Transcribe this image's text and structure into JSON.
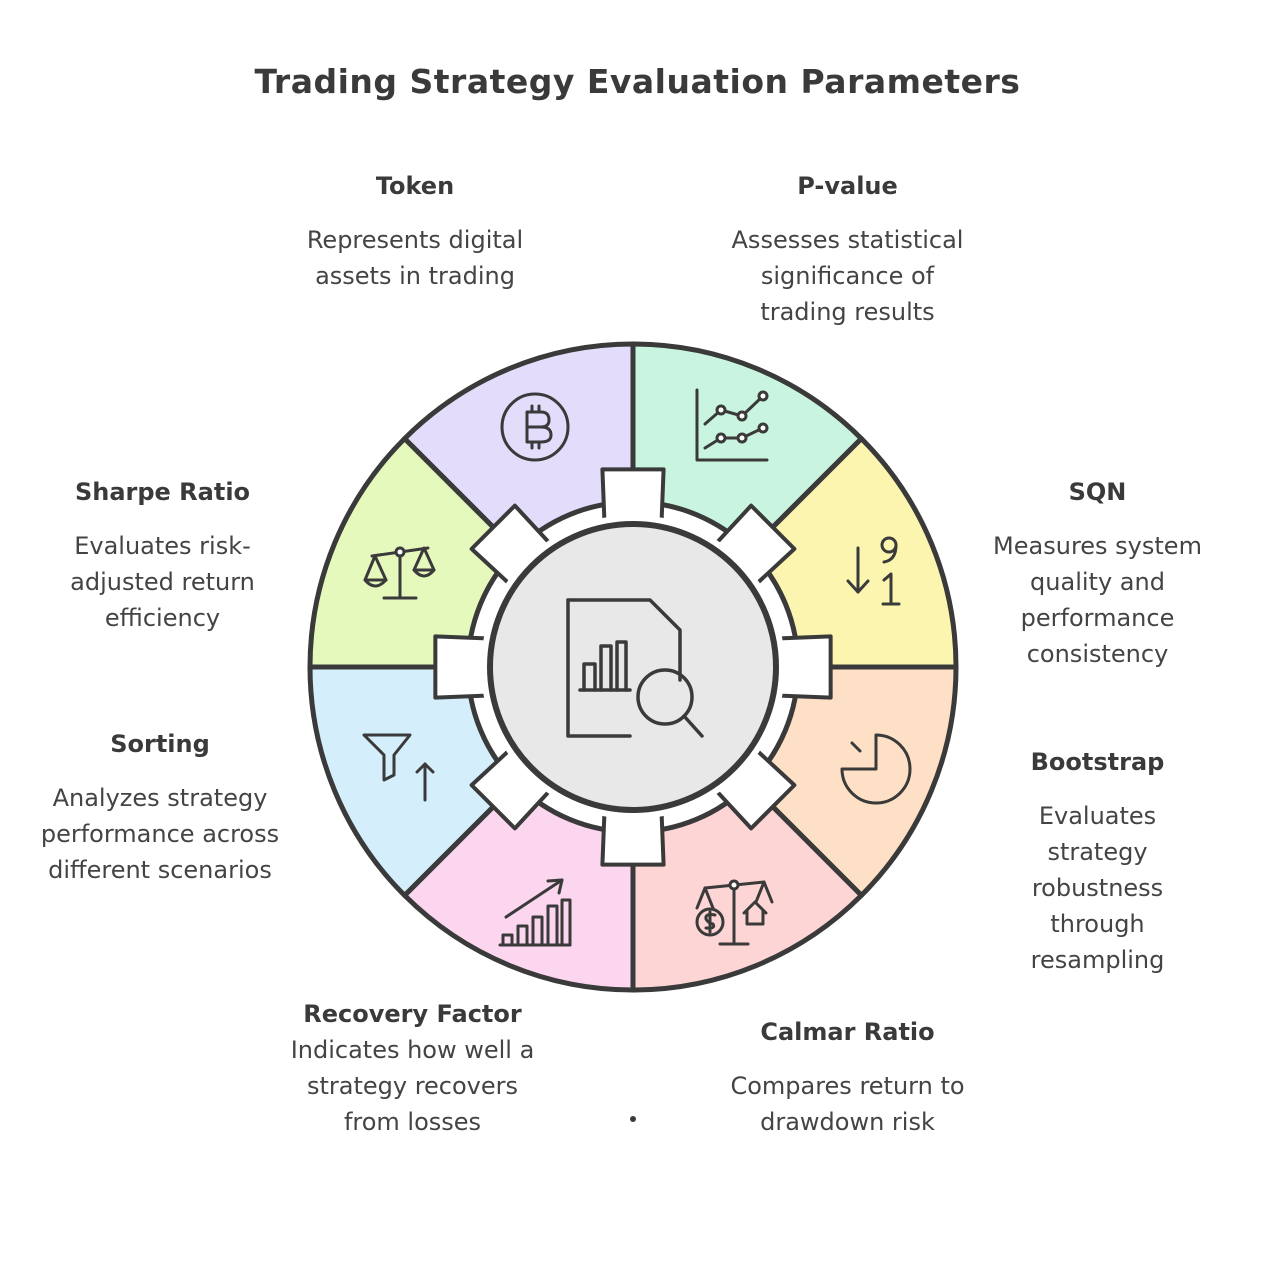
{
  "title": "Trading Strategy Evaluation Parameters",
  "colors": {
    "token": "#e3ddfb",
    "pvalue": "#c9f5e0",
    "sqn": "#fbf5b0",
    "bootstrap": "#fde0c6",
    "calmar": "#fdd5d5",
    "recovery": "#fbd6ee",
    "sorting": "#d4eefb",
    "sharpe": "#e6f9bd",
    "hub": "#e8e8e8",
    "stroke": "#3a3a3a"
  },
  "center_icon": "report-magnifier-icon",
  "items": [
    {
      "key": "token",
      "title": "Token",
      "description": "Represents digital assets in trading",
      "icon": "bitcoin-icon"
    },
    {
      "key": "pvalue",
      "title": "P-value",
      "description": "Assesses statistical significance of trading results",
      "icon": "line-chart-icon"
    },
    {
      "key": "sqn",
      "title": "SQN",
      "description": "Measures system quality and performance consistency",
      "icon": "sort-9-1-icon"
    },
    {
      "key": "bootstrap",
      "title": "Bootstrap",
      "description": "Evaluates strategy robustness through resampling",
      "icon": "pie-chart-icon"
    },
    {
      "key": "calmar",
      "title": "Calmar Ratio",
      "description": "Compares return to drawdown risk",
      "icon": "scale-dollar-house-icon"
    },
    {
      "key": "recovery",
      "title": "Recovery Factor",
      "description": "Indicates how well a strategy recovers from losses",
      "icon": "growth-bars-icon"
    },
    {
      "key": "sorting",
      "title": "Sorting",
      "description": "Analyzes strategy performance across different scenarios",
      "icon": "funnel-sort-icon"
    },
    {
      "key": "sharpe",
      "title": "Sharpe Ratio",
      "description": "Evaluates risk-adjusted return efficiency",
      "icon": "balance-scale-icon"
    }
  ]
}
